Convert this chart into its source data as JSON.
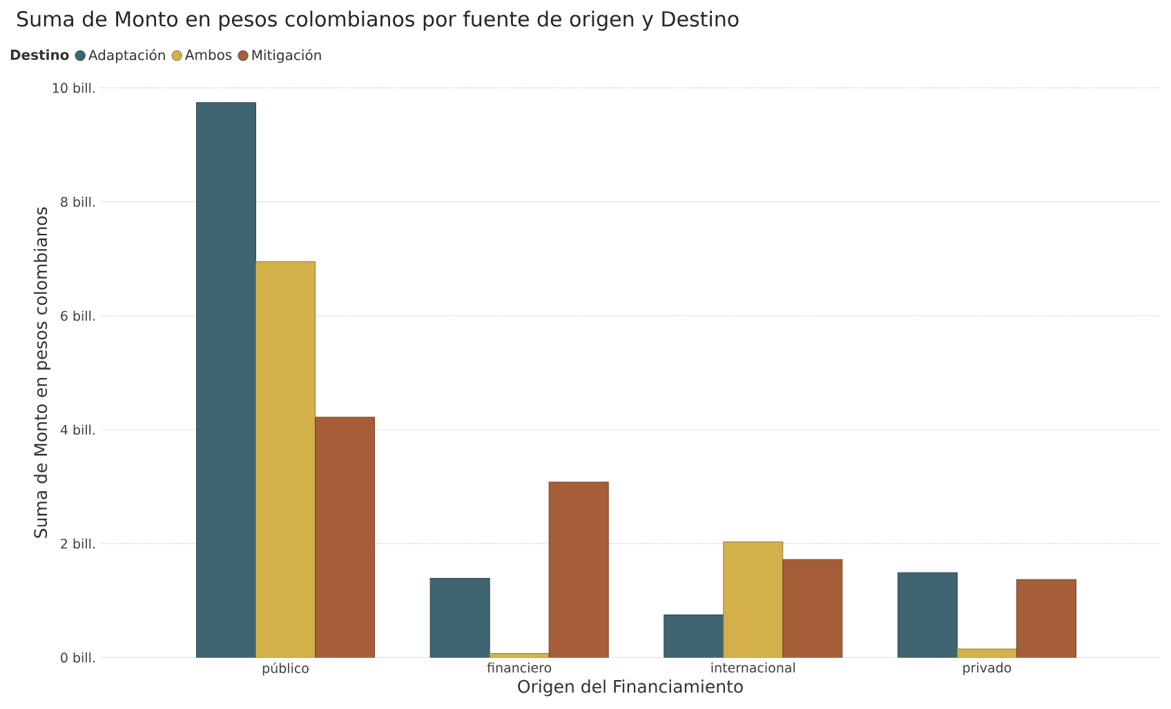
{
  "chart_data": {
    "type": "bar",
    "title": "Suma de Monto en pesos colombianos por fuente de origen y Destino",
    "xlabel": "Origen del Financiamiento",
    "ylabel": "Suma de Monto en pesos colombianos",
    "legend_title": "Destino",
    "categories": [
      "público",
      "financiero",
      "internacional",
      "privado"
    ],
    "series": [
      {
        "name": "Adaptación",
        "color": "#3f6670",
        "values": [
          9.74,
          1.39,
          0.75,
          1.49
        ]
      },
      {
        "name": "Ambos",
        "color": "#d4b04a",
        "values": [
          6.95,
          0.07,
          2.03,
          0.15
        ]
      },
      {
        "name": "Mitigación",
        "color": "#a65e38",
        "values": [
          4.22,
          3.08,
          1.72,
          1.37
        ]
      }
    ],
    "ylim": [
      0,
      10
    ],
    "yticks": [
      {
        "value": 0,
        "label": "0 bill."
      },
      {
        "value": 2,
        "label": "2 bill."
      },
      {
        "value": 4,
        "label": "4 bill."
      },
      {
        "value": 6,
        "label": "6 bill."
      },
      {
        "value": 8,
        "label": "8 bill."
      },
      {
        "value": 10,
        "label": "10 bill."
      }
    ],
    "grid": "y",
    "legend": "top left"
  }
}
